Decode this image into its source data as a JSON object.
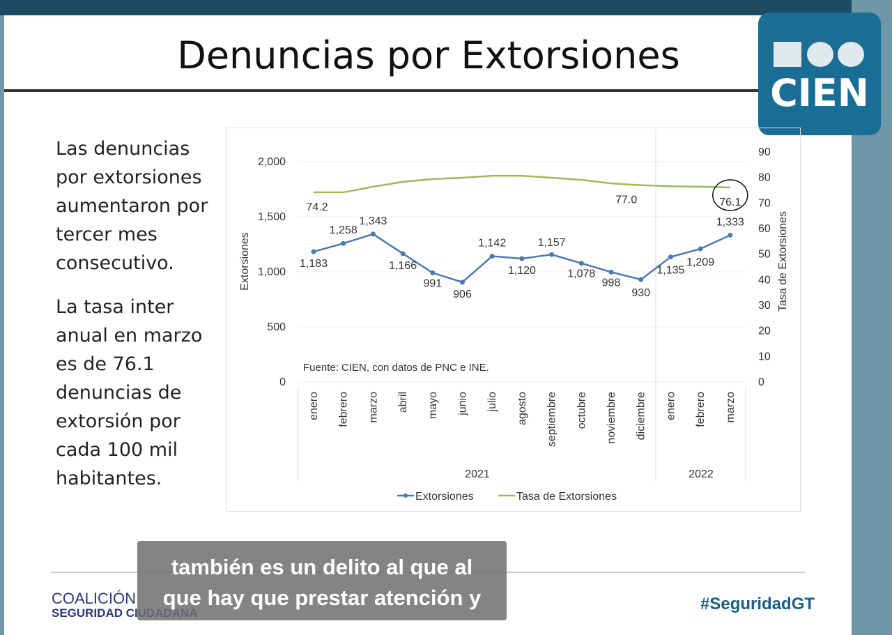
{
  "slide": {
    "title": "Denuncias por Extorsiones",
    "logo_text": "CIEN",
    "body": [
      "Las denuncias por extorsiones aumentaron por tercer mes consecutivo.",
      "La tasa inter anual en marzo es de 76.1 denuncias de extorsión por cada 100 mil habitantes."
    ]
  },
  "footer": {
    "org_line1": "COALICIÓN",
    "org_line2": "SEGURIDAD CIUDADANA",
    "hashtag": "#SeguridadGT"
  },
  "caption": {
    "line1": "también es un delito al que al",
    "line2": "que hay que prestar atención y"
  },
  "chart_data": {
    "type": "line",
    "categories": [
      "enero",
      "febrero",
      "marzo",
      "abril",
      "mayo",
      "junio",
      "julio",
      "agosto",
      "septiembre",
      "octubre",
      "noviembre",
      "diciembre",
      "enero",
      "febrero",
      "marzo"
    ],
    "year_groups": [
      {
        "label": "2021",
        "count": 12
      },
      {
        "label": "2022",
        "count": 3
      }
    ],
    "ylabel": "Extorsiones",
    "y2label": "Tasa de Extorsiones",
    "ylim": [
      0,
      2000
    ],
    "yticks": [
      "0",
      "500",
      "1,000",
      "1,500",
      "2,000"
    ],
    "y2lim": [
      0,
      90
    ],
    "y2ticks": [
      "0",
      "10",
      "20",
      "30",
      "40",
      "50",
      "60",
      "70",
      "80",
      "90"
    ],
    "source": "Fuente: CIEN, con datos de PNC e INE.",
    "series": [
      {
        "name": "Extorsiones",
        "axis": "left",
        "color": "#4a7ab5",
        "values": [
          1183,
          1258,
          1343,
          1166,
          991,
          906,
          1142,
          1120,
          1157,
          1078,
          998,
          930,
          1135,
          1209,
          1333
        ],
        "labels": [
          "1,183",
          "1,258",
          "1,343",
          "1,166",
          "991",
          "906",
          "1,142",
          "1,120",
          "1,157",
          "1,078",
          "998",
          "930",
          "1,135",
          "1,209",
          "1,333"
        ]
      },
      {
        "name": "Tasa de Extorsiones",
        "axis": "right",
        "color": "#9bbb59",
        "values": [
          74.2,
          74.2,
          76.4,
          78.3,
          79.4,
          79.9,
          80.7,
          80.7,
          79.9,
          79.1,
          77.7,
          77.0,
          76.6,
          76.4,
          76.1
        ],
        "labels": {
          "0": "74.2",
          "11": "77.0",
          "14": "76.1"
        }
      }
    ],
    "legend": [
      "Extorsiones",
      "Tasa de Extorsiones"
    ],
    "legend_position": "bottom"
  }
}
